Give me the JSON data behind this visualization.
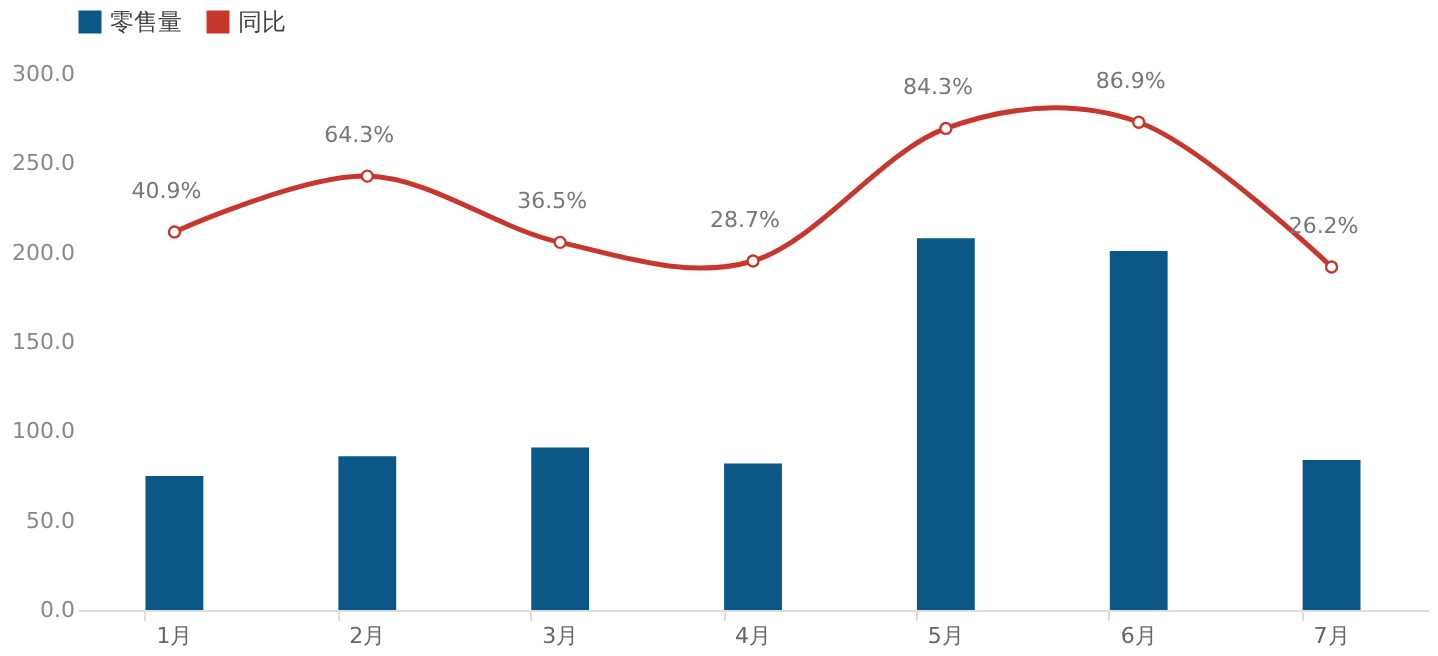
{
  "chart_data": {
    "type": "bar",
    "categories": [
      "1月",
      "2月",
      "3月",
      "4月",
      "5月",
      "6月",
      "7月"
    ],
    "series": [
      {
        "name": "零售量",
        "color": "#0b5788",
        "values": [
          75,
          86,
          91,
          82,
          208,
          201,
          84
        ]
      },
      {
        "name": "同比",
        "type": "line",
        "axis": "y2",
        "color": "#c8372d",
        "marker": "circle",
        "values": [
          40.9,
          64.3,
          36.5,
          28.7,
          84.3,
          86.9,
          26.2
        ],
        "value_labels": [
          "40.9%",
          "64.3%",
          "36.5%",
          "28.7%",
          "84.3%",
          "86.9%",
          "26.2%"
        ]
      }
    ],
    "ylim": [
      0,
      300
    ],
    "yticks": [
      {
        "value": 0,
        "label": "0.0"
      },
      {
        "value": 50,
        "label": "50.0"
      },
      {
        "value": 100,
        "label": "100.0"
      },
      {
        "value": 150,
        "label": "150.0"
      },
      {
        "value": 200,
        "label": "200.0"
      },
      {
        "value": 250,
        "label": "250.0"
      },
      {
        "value": 300,
        "label": "300.0"
      }
    ],
    "legend": "top",
    "grid": false
  }
}
